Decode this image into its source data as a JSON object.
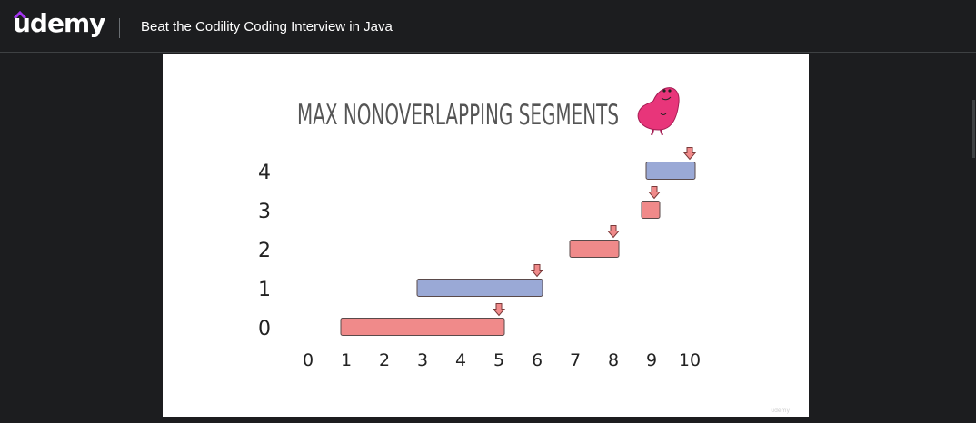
{
  "header": {
    "logo_text": "udemy",
    "course_title": "Beat the Codility Coding Interview in Java"
  },
  "colors": {
    "red_segment": "#f08a8a",
    "blue_segment": "#9aa9d6",
    "mascot": "#e8357a",
    "accent_logo": "#a435f0"
  },
  "chart_data": {
    "type": "bar",
    "title": "MAX NONOVERLAPPING SEGMENTS",
    "x_ticks": [
      "0",
      "1",
      "2",
      "3",
      "4",
      "5",
      "6",
      "7",
      "8",
      "9",
      "10"
    ],
    "y_ticks": [
      "0",
      "1",
      "2",
      "3",
      "4"
    ],
    "xlim": [
      0,
      10
    ],
    "ylim": [
      0,
      4
    ],
    "segments": [
      {
        "row": 0,
        "start": 1,
        "end": 5,
        "color": "red"
      },
      {
        "row": 1,
        "start": 3,
        "end": 6,
        "color": "blue"
      },
      {
        "row": 2,
        "start": 7,
        "end": 8,
        "color": "red"
      },
      {
        "row": 3,
        "start": 9,
        "end": 9,
        "color": "red"
      },
      {
        "row": 4,
        "start": 9,
        "end": 10,
        "color": "blue"
      }
    ],
    "markers": "arrow at end of each segment"
  }
}
